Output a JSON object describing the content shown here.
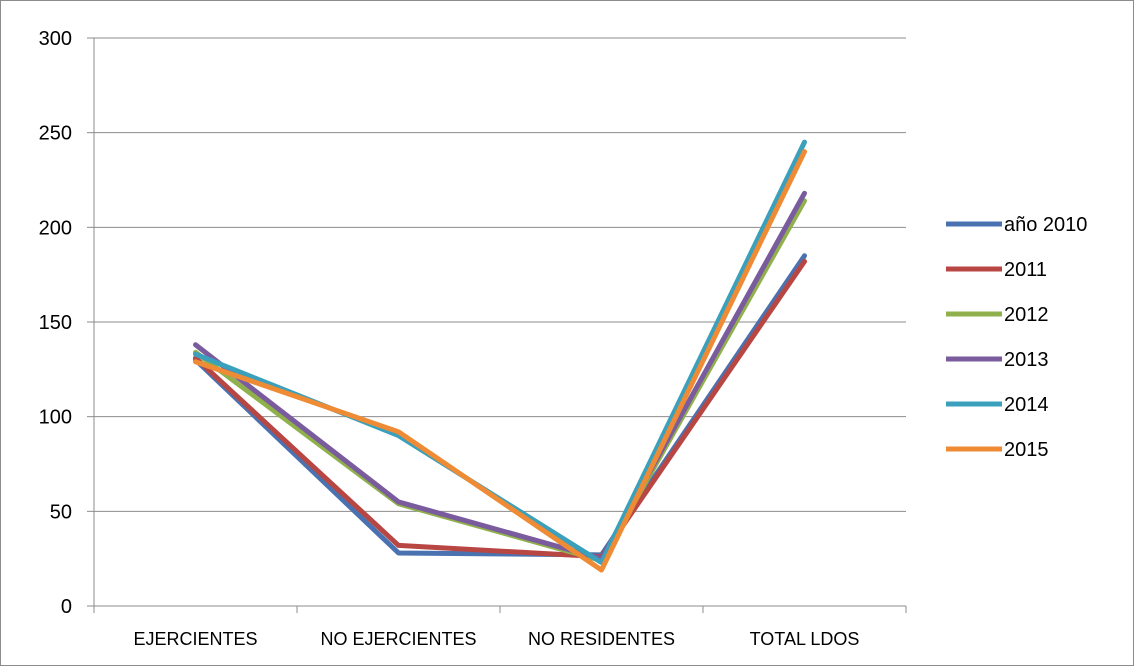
{
  "chart_data": {
    "type": "line",
    "title": "",
    "xlabel": "",
    "ylabel": "",
    "categories": [
      "EJERCIENTES",
      "NO  EJERCIENTES",
      "NO RESIDENTES",
      "TOTAL LDOS"
    ],
    "ylim": [
      0,
      300
    ],
    "yticks": [
      0,
      50,
      100,
      150,
      200,
      250,
      300
    ],
    "grid": true,
    "legend_position": "right",
    "series": [
      {
        "name": "año 2010",
        "color": "#4a72b0",
        "values": [
          130,
          28,
          27,
          185
        ]
      },
      {
        "name": "2011",
        "color": "#b84744",
        "values": [
          131,
          32,
          26,
          182
        ]
      },
      {
        "name": "2012",
        "color": "#8fb04b",
        "values": [
          134,
          54,
          24,
          214
        ]
      },
      {
        "name": "2013",
        "color": "#7a5c9e",
        "values": [
          138,
          55,
          25,
          218
        ]
      },
      {
        "name": "2014",
        "color": "#3aa0bc",
        "values": [
          133,
          90,
          23,
          245
        ]
      },
      {
        "name": "2015",
        "color": "#ee8b34",
        "values": [
          129,
          92,
          19,
          240
        ]
      }
    ]
  }
}
